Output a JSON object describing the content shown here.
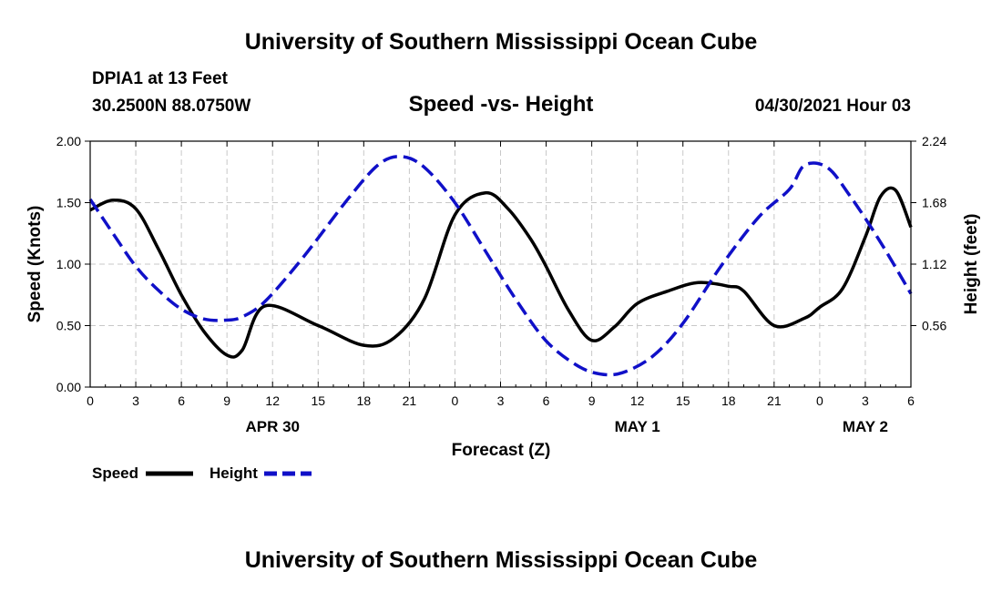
{
  "header": {
    "title": "University of Southern Mississippi Ocean Cube",
    "station": "DPIA1 at 13 Feet",
    "coords": "30.2500N  88.0750W",
    "subtitle": "Speed -vs- Height",
    "datetime": "04/30/2021 Hour 03"
  },
  "footer": {
    "title": "University of Southern Mississippi Ocean Cube"
  },
  "colors": {
    "speed": "#000000",
    "height": "#1010c8",
    "grid": "#c8c8c8"
  },
  "chart_data": {
    "type": "line",
    "title": "Speed -vs- Height",
    "xlabel": "Forecast (Z)",
    "ylabel": "Speed (Knots)",
    "y2label": "Height (feet)",
    "xlim": [
      0,
      54
    ],
    "ylim": [
      0,
      2.0
    ],
    "y2lim": [
      0,
      2.24
    ],
    "x_ticks": [
      0,
      3,
      6,
      9,
      12,
      15,
      18,
      21,
      24,
      27,
      30,
      33,
      36,
      39,
      42,
      45,
      48,
      51,
      54
    ],
    "x_tick_labels": [
      "0",
      "3",
      "6",
      "9",
      "12",
      "15",
      "18",
      "21",
      "0",
      "3",
      "6",
      "9",
      "12",
      "15",
      "18",
      "21",
      "0",
      "3",
      "6"
    ],
    "date_labels": [
      {
        "label": "APR 30",
        "x": 12
      },
      {
        "label": "MAY 1",
        "x": 36
      },
      {
        "label": "MAY 2",
        "x": 51
      }
    ],
    "y_ticks": [
      0,
      0.5,
      1.0,
      1.5,
      2.0
    ],
    "y_tick_labels": [
      "0.00",
      "0.50",
      "1.00",
      "1.50",
      "2.00"
    ],
    "y2_ticks": [
      0.56,
      1.12,
      1.68,
      2.24
    ],
    "y2_tick_labels": [
      "0.56",
      "1.12",
      "1.68",
      "2.24"
    ],
    "grid": true,
    "series": [
      {
        "name": "Speed",
        "axis": "left",
        "style": "solid",
        "x": [
          0,
          1.5,
          3,
          4.5,
          6,
          7.5,
          9,
          10,
          11.5,
          15,
          18,
          20,
          22,
          24,
          26,
          27.5,
          29,
          30,
          31.5,
          33,
          34.5,
          36,
          38,
          40,
          42,
          43,
          45,
          47,
          48,
          49.5,
          51,
          52,
          53,
          54
        ],
        "y": [
          1.44,
          1.52,
          1.45,
          1.12,
          0.75,
          0.45,
          0.26,
          0.3,
          0.66,
          0.5,
          0.34,
          0.4,
          0.72,
          1.4,
          1.58,
          1.45,
          1.2,
          0.98,
          0.62,
          0.38,
          0.49,
          0.68,
          0.78,
          0.85,
          0.82,
          0.78,
          0.5,
          0.56,
          0.65,
          0.8,
          1.22,
          1.55,
          1.6,
          1.3
        ]
      },
      {
        "name": "Height",
        "axis": "right",
        "style": "dashed",
        "x": [
          0,
          1.5,
          3,
          4.5,
          6,
          7.5,
          9,
          10,
          11.5,
          14,
          17,
          19,
          20.5,
          22,
          24,
          26,
          28,
          30,
          32,
          33.5,
          35,
          37,
          39,
          41.5,
          44,
          46,
          47,
          48.5,
          50,
          52,
          54
        ],
        "y": [
          1.71,
          1.4,
          1.1,
          0.88,
          0.71,
          0.62,
          0.61,
          0.64,
          0.78,
          1.18,
          1.72,
          2.03,
          2.1,
          2.0,
          1.68,
          1.24,
          0.8,
          0.42,
          0.2,
          0.12,
          0.13,
          0.28,
          0.58,
          1.1,
          1.55,
          1.8,
          2.02,
          2.0,
          1.74,
          1.32,
          0.85
        ]
      }
    ],
    "legend": [
      {
        "name": "Speed",
        "style": "solid"
      },
      {
        "name": "Height",
        "style": "dashed"
      }
    ],
    "legend_position": "bottom-left"
  }
}
